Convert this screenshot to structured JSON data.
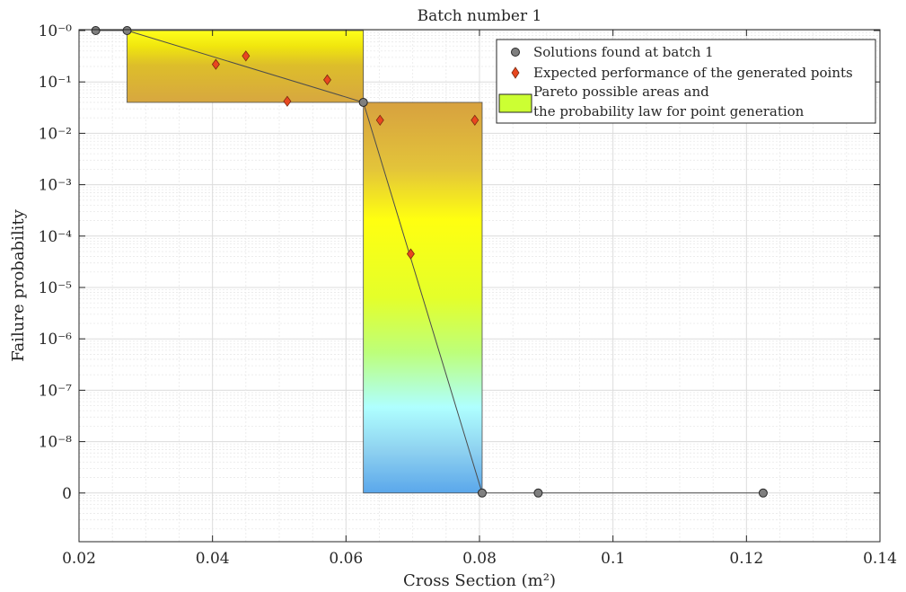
{
  "chart_data": {
    "type": "scatter",
    "title": "Batch number 1",
    "xlabel": "Cross Section (m²)",
    "ylabel": "Failure probability",
    "xlim": [
      0.02,
      0.14
    ],
    "x_ticks": [
      0.02,
      0.04,
      0.06,
      0.08,
      0.1,
      0.12,
      0.14
    ],
    "x_tick_labels": [
      "0.02",
      "0.04",
      "0.06",
      "0.08",
      "0.1",
      "0.12",
      "0.14"
    ],
    "y_tick_labels": [
      "10⁻⁰",
      "10⁻¹",
      "10⁻²",
      "10⁻³",
      "10⁻⁴",
      "10⁻⁵",
      "10⁻⁶",
      "10⁻⁷",
      "10⁻⁸",
      "0"
    ],
    "y_scale": "log10 with an extra zero level below 1e-8",
    "grid": true,
    "legend_position": "top-right",
    "series": [
      {
        "name": "Solutions found at batch 1",
        "marker": "circle",
        "color": "#7f7f7f",
        "points": [
          [
            0.0225,
            1.0
          ],
          [
            0.0272,
            1.0
          ],
          [
            0.0626,
            0.04
          ],
          [
            0.0804,
            0
          ],
          [
            0.0888,
            0
          ],
          [
            0.1225,
            0
          ]
        ]
      },
      {
        "name": "Expected performance of the generated points",
        "marker": "diamond",
        "color": "#e8471f",
        "points": [
          [
            0.0405,
            0.22
          ],
          [
            0.045,
            0.32
          ],
          [
            0.0512,
            0.042
          ],
          [
            0.0572,
            0.11
          ],
          [
            0.0651,
            0.018
          ],
          [
            0.0697,
            4.5e-05
          ],
          [
            0.0793,
            0.018
          ]
        ]
      }
    ],
    "areas": {
      "name": "Pareto possible areas and\nthe probability law for point generation",
      "legend_lines": [
        "Pareto possible areas and",
        "the probability law for point generation"
      ],
      "color": "#ccff33",
      "rects": [
        {
          "x": [
            0.0272,
            0.0626
          ],
          "y": [
            0.04,
            1.0
          ]
        },
        {
          "x": [
            0.0626,
            0.0804
          ],
          "y": [
            0,
            0.04
          ]
        }
      ]
    }
  }
}
